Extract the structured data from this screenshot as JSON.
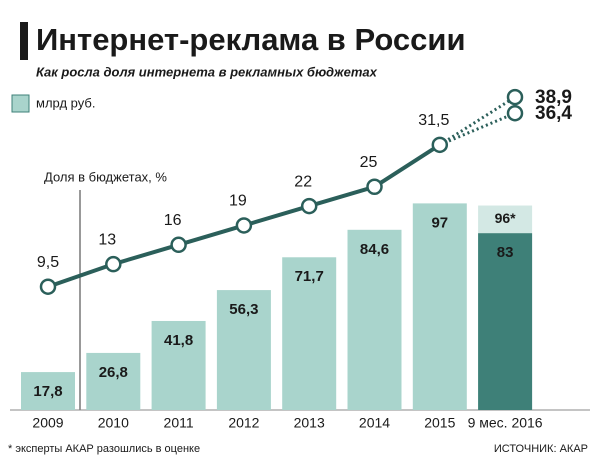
{
  "chart_data": {
    "type": "bar",
    "title": "Интернет-реклама в России",
    "subtitle": "Как росла доля интернета в рекламных бюджетах",
    "categories": [
      "2009",
      "2010",
      "2011",
      "2012",
      "2013",
      "2014",
      "2015",
      "9 мес. 2016"
    ],
    "series": [
      {
        "name": "млрд руб.",
        "color": "#a9d4cc",
        "colors": [
          "#a9d4cc",
          "#a9d4cc",
          "#a9d4cc",
          "#a9d4cc",
          "#a9d4cc",
          "#a9d4cc",
          "#a9d4cc",
          "#3e8078"
        ],
        "values": [
          17.8,
          26.8,
          41.8,
          56.3,
          71.7,
          84.6,
          97,
          83
        ],
        "value_labels": [
          "17,8",
          "26,8",
          "41,8",
          "56,3",
          "71,7",
          "84,6",
          "97",
          "83"
        ]
      },
      {
        "color": "#d3e8e4",
        "values": [
          null,
          null,
          null,
          null,
          null,
          null,
          null,
          96
        ],
        "value_labels": [
          null,
          null,
          null,
          null,
          null,
          null,
          null,
          "96*"
        ]
      }
    ],
    "line": {
      "name": "Доля в бюджетах, %",
      "color": "#2b5f5a",
      "values": [
        9.5,
        13,
        16,
        19,
        22,
        25,
        31.5,
        null
      ],
      "value_labels": [
        "9,5",
        "13",
        "16",
        "19",
        "22",
        "25",
        "31,5",
        null
      ]
    },
    "forecast": {
      "values": [
        38.9,
        36.4
      ],
      "value_labels": [
        "38,9",
        "36,4"
      ]
    },
    "footnote": "* эксперты АКАР разошлись в оценке",
    "source": "ИСТОЧНИК: АКАР"
  }
}
